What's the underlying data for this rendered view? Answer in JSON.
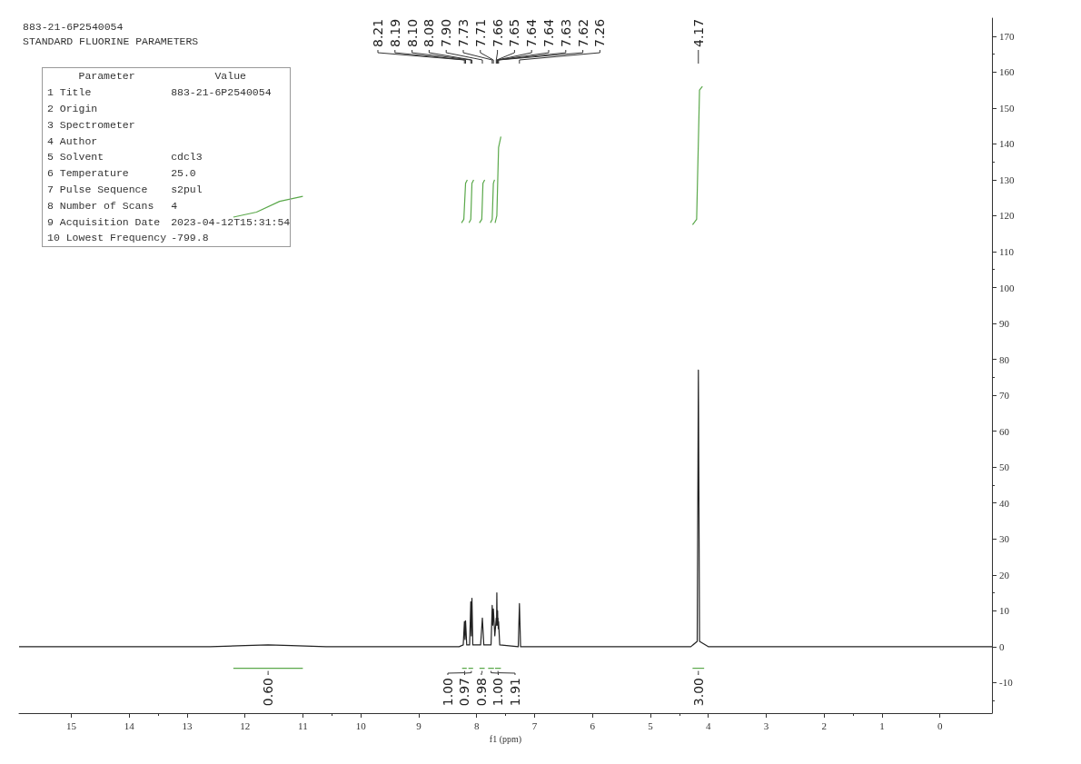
{
  "chart_data": {
    "type": "line",
    "title": "883-21-6P2540054",
    "subtitle": "STANDARD FLUORINE PARAMETERS",
    "xlabel": "f1 (ppm)",
    "xlim": [
      15.9,
      -0.9
    ],
    "xticks": [
      15,
      14,
      13,
      12,
      11,
      10,
      9,
      8,
      7,
      6,
      5,
      4,
      3,
      2,
      1,
      0
    ],
    "ylim": [
      -18.5,
      175
    ],
    "yticks": [
      -10,
      0,
      10,
      20,
      30,
      40,
      50,
      60,
      70,
      80,
      90,
      100,
      110,
      120,
      130,
      140,
      150,
      160,
      170
    ],
    "grid": false,
    "series": [
      {
        "color": "#222222",
        "x": [
          15.9,
          12.6,
          12.0,
          11.6,
          11.2,
          10.6,
          8.3,
          8.23,
          8.21,
          8.2,
          8.19,
          8.17,
          8.12,
          8.1,
          8.09,
          8.08,
          8.065,
          7.93,
          7.9,
          7.875,
          7.75,
          7.73,
          7.72,
          7.71,
          7.685,
          7.66,
          7.655,
          7.65,
          7.645,
          7.643,
          7.64,
          7.637,
          7.633,
          7.63,
          7.625,
          7.62,
          7.6,
          7.28,
          7.26,
          7.24,
          4.3,
          4.19,
          4.17,
          4.15,
          4.0,
          -0.9
        ],
        "values": [
          0,
          0,
          0.3,
          0.5,
          0.3,
          0,
          0,
          0.5,
          7,
          2,
          7.2,
          0.5,
          0.5,
          12.5,
          3,
          13.5,
          0.5,
          0.5,
          8,
          0.5,
          0.5,
          11.5,
          6,
          10.5,
          3,
          8,
          6,
          15,
          7,
          9,
          6,
          10,
          7,
          8,
          5,
          7,
          0.5,
          0,
          12,
          0,
          0,
          1.5,
          77,
          1.5,
          0,
          0
        ]
      },
      {
        "color": "#5aa84a",
        "x": [
          12.2,
          11.8,
          11.4,
          11.0
        ],
        "values": [
          119.6,
          121,
          124,
          125.4
        ]
      },
      {
        "color": "#5aa84a",
        "x": [
          8.26,
          8.22,
          8.19,
          8.16
        ],
        "values": [
          118,
          119,
          129,
          130
        ]
      },
      {
        "color": "#5aa84a",
        "x": [
          8.13,
          8.1,
          8.08,
          8.05
        ],
        "values": [
          118,
          119,
          129,
          130
        ]
      },
      {
        "color": "#5aa84a",
        "x": [
          7.95,
          7.91,
          7.89,
          7.86
        ],
        "values": [
          118,
          119,
          129,
          130
        ]
      },
      {
        "color": "#5aa84a",
        "x": [
          7.76,
          7.73,
          7.71,
          7.69
        ],
        "values": [
          118,
          119,
          129,
          130
        ]
      },
      {
        "color": "#5aa84a",
        "x": [
          7.68,
          7.65,
          7.62,
          7.58
        ],
        "values": [
          118,
          120,
          139,
          142
        ]
      },
      {
        "color": "#5aa84a",
        "x": [
          4.27,
          4.2,
          4.15,
          4.1
        ],
        "values": [
          117.5,
          119,
          155,
          156
        ]
      },
      {
        "color": "#5aa84a",
        "x": [
          12.2,
          11.0
        ],
        "values": [
          -6,
          -6
        ]
      },
      {
        "color": "#5aa84a",
        "x": [
          8.25,
          8.17,
          null,
          8.14,
          8.06,
          null,
          7.95,
          7.86,
          null,
          7.8,
          7.7,
          null,
          7.68,
          7.58
        ],
        "values": [
          -6,
          -6,
          null,
          -6,
          -6,
          null,
          -6,
          -6,
          null,
          -6,
          -6,
          null,
          -6,
          -6
        ]
      },
      {
        "color": "#5aa84a",
        "x": [
          4.27,
          4.07
        ],
        "values": [
          -6,
          -6
        ]
      }
    ],
    "annotations": [
      "8.21",
      "8.19",
      "8.10",
      "8.08",
      "7.90",
      "7.73",
      "7.71",
      "7.66",
      "7.65",
      "7.64",
      "7.64",
      "7.63",
      "7.62",
      "7.26",
      "4.17",
      {
        "text": "0.60",
        "x": 11.6,
        "y": -6
      },
      {
        "text": "1.00",
        "x": 8.205,
        "y": -6
      },
      {
        "text": "0.97",
        "x": 8.09,
        "y": -6
      },
      {
        "text": "0.98",
        "x": 7.905,
        "y": -6
      },
      {
        "text": "1.00",
        "x": 7.75,
        "y": -6
      },
      {
        "text": "1.91",
        "x": 7.63,
        "y": -6
      },
      {
        "text": "3.00",
        "x": 4.17,
        "y": -6
      },
      "Parameter\tValue",
      "1 Title\t883-21-6P2540054",
      "2 Origin",
      "3 Spectrometer",
      "4 Author",
      "5 Solvent\tcdcl3",
      "6 Temperature\t25.0",
      "7 Pulse Sequence\ts2pul",
      "8 Number of Scans\t4",
      "9 Acquisition Date\t2023-04-12T15:31:54",
      "10 Lowest Frequency\t-799.8"
    ]
  }
}
